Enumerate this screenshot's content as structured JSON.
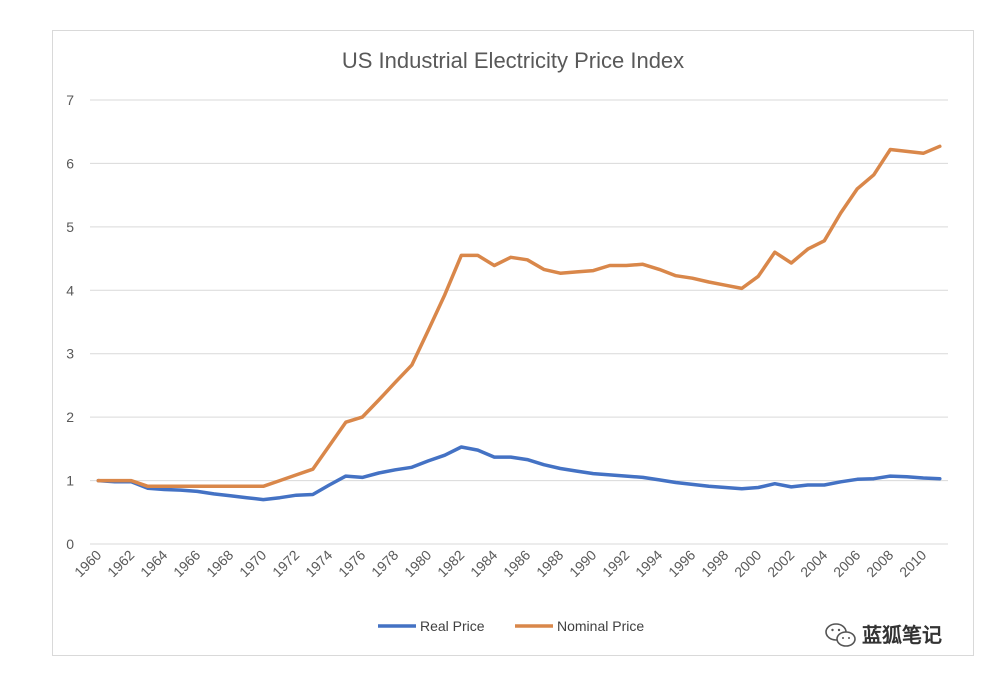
{
  "chart_data": {
    "type": "line",
    "title": "US Industrial Electricity Price Index",
    "xlabel": "",
    "ylabel": "",
    "ylim": [
      0,
      7
    ],
    "yticks": [
      "0",
      "1",
      "2",
      "3",
      "4",
      "5",
      "6",
      "7"
    ],
    "xticks": [
      "1960",
      "1962",
      "1964",
      "1966",
      "1968",
      "1970",
      "1972",
      "1974",
      "1976",
      "1978",
      "1980",
      "1982",
      "1984",
      "1986",
      "1988",
      "1990",
      "1992",
      "1994",
      "1996",
      "1998",
      "2000",
      "2002",
      "2004",
      "2006",
      "2008",
      "2010"
    ],
    "grid": "horizontal",
    "legend_position": "bottom",
    "x": [
      1960,
      1961,
      1962,
      1963,
      1964,
      1965,
      1966,
      1967,
      1968,
      1969,
      1970,
      1971,
      1972,
      1973,
      1974,
      1975,
      1976,
      1977,
      1978,
      1979,
      1980,
      1981,
      1982,
      1983,
      1984,
      1985,
      1986,
      1987,
      1988,
      1989,
      1990,
      1991,
      1992,
      1993,
      1994,
      1995,
      1996,
      1997,
      1998,
      1999,
      2000,
      2001,
      2002,
      2003,
      2004,
      2005,
      2006,
      2007,
      2008,
      2009,
      2010,
      2011
    ],
    "series": [
      {
        "name": "Real Price",
        "color": "#4472c4",
        "values": [
          1.0,
          0.98,
          0.98,
          0.88,
          0.86,
          0.85,
          0.83,
          0.79,
          0.76,
          0.73,
          0.7,
          0.73,
          0.77,
          0.78,
          0.93,
          1.07,
          1.05,
          1.12,
          1.17,
          1.21,
          1.31,
          1.4,
          1.53,
          1.48,
          1.37,
          1.37,
          1.33,
          1.25,
          1.19,
          1.15,
          1.11,
          1.09,
          1.07,
          1.05,
          1.01,
          0.97,
          0.94,
          0.91,
          0.89,
          0.87,
          0.89,
          0.95,
          0.9,
          0.93,
          0.93,
          0.98,
          1.02,
          1.03,
          1.07,
          1.06,
          1.04,
          1.03
        ]
      },
      {
        "name": "Nominal Price",
        "color": "#d9874a",
        "values": [
          1.0,
          1.0,
          1.0,
          0.91,
          0.91,
          0.91,
          0.91,
          0.91,
          0.91,
          0.91,
          0.91,
          1.0,
          1.09,
          1.18,
          1.55,
          1.92,
          2.0,
          2.27,
          2.55,
          2.82,
          3.37,
          3.93,
          4.55,
          4.55,
          4.39,
          4.52,
          4.48,
          4.33,
          4.27,
          4.29,
          4.31,
          4.39,
          4.39,
          4.41,
          4.33,
          4.23,
          4.19,
          4.13,
          4.08,
          4.03,
          4.22,
          4.6,
          4.43,
          4.65,
          4.78,
          5.22,
          5.6,
          5.82,
          6.22,
          6.19,
          6.16,
          6.27
        ]
      }
    ]
  },
  "watermark": {
    "icon": "wechat-icon",
    "text": "蓝狐笔记"
  }
}
